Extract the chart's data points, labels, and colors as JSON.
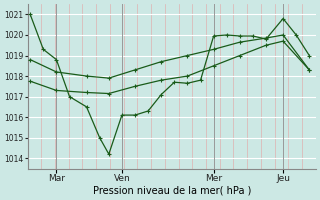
{
  "xlabel": "Pression niveau de la mer( hPa )",
  "ylim": [
    1013.5,
    1021.5
  ],
  "yticks": [
    1014,
    1015,
    1016,
    1017,
    1018,
    1019,
    1020,
    1021
  ],
  "bg_color": "#cce8e4",
  "line_color": "#1a5c1a",
  "grid_color_v": "#e0b0b0",
  "grid_color_h": "#ffffff",
  "xlim": [
    0,
    22
  ],
  "day_positions": [
    2.2,
    7.2,
    14.2,
    19.5
  ],
  "day_labels": [
    "Mar",
    "Ven",
    "Mer",
    "Jeu"
  ],
  "line1_x": [
    0.2,
    1.2,
    2.2,
    3.2,
    4.5,
    5.5,
    6.2,
    7.2,
    8.2,
    9.2,
    10.2,
    11.2,
    12.2,
    13.2,
    14.2,
    15.2,
    16.2,
    17.2,
    18.2,
    19.5,
    20.5,
    21.5
  ],
  "line1_y": [
    1021.0,
    1019.3,
    1018.8,
    1017.0,
    1016.5,
    1015.0,
    1014.2,
    1016.1,
    1016.1,
    1016.3,
    1017.1,
    1017.7,
    1017.65,
    1017.8,
    1019.95,
    1020.0,
    1019.95,
    1019.95,
    1019.8,
    1020.8,
    1020.0,
    1019.0
  ],
  "line2_x": [
    0.2,
    2.2,
    4.5,
    6.2,
    8.2,
    10.2,
    12.2,
    14.2,
    16.2,
    18.2,
    19.5,
    21.5
  ],
  "line2_y": [
    1017.75,
    1017.3,
    1017.2,
    1017.15,
    1017.5,
    1017.8,
    1018.0,
    1018.5,
    1019.0,
    1019.5,
    1019.7,
    1018.3
  ],
  "line3_x": [
    0.2,
    2.2,
    4.5,
    6.2,
    8.2,
    10.2,
    12.2,
    14.2,
    16.2,
    18.2,
    19.5,
    21.5
  ],
  "line3_y": [
    1018.8,
    1018.2,
    1018.0,
    1017.9,
    1018.3,
    1018.7,
    1019.0,
    1019.3,
    1019.65,
    1019.85,
    1020.0,
    1018.3
  ]
}
